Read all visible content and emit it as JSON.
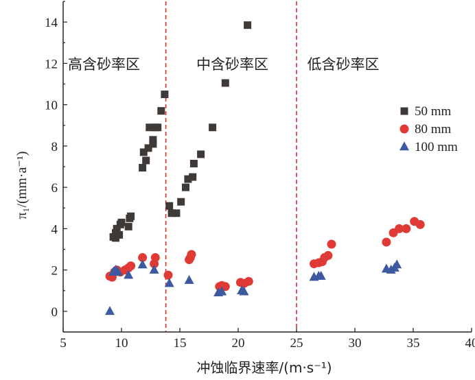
{
  "chart_data": {
    "type": "scatter",
    "xlabel": "冲蚀临界速率/(m·s⁻¹)",
    "ylabel": "π₁/(mm·a⁻¹)",
    "xlim": [
      5,
      40
    ],
    "ylim": [
      -1,
      15
    ],
    "xticks": [
      5,
      10,
      15,
      20,
      25,
      30,
      35,
      40
    ],
    "yticks": [
      0,
      2,
      4,
      6,
      8,
      10,
      12,
      14
    ],
    "grid": false,
    "legend_position": "right",
    "vlines": [
      13.8,
      25
    ],
    "regions": [
      {
        "label": "高含砂率区",
        "x": 8.5
      },
      {
        "label": "中含砂率区",
        "x": 19.5
      },
      {
        "label": "低含砂率区",
        "x": 29.0
      }
    ],
    "series": [
      {
        "name": "50 mm",
        "marker": "square",
        "color": "#3f3a37",
        "points": [
          [
            9.3,
            3.6
          ],
          [
            9.5,
            3.55
          ],
          [
            9.5,
            3.8
          ],
          [
            9.6,
            4.0
          ],
          [
            9.8,
            3.7
          ],
          [
            9.9,
            4.2
          ],
          [
            10.0,
            4.3
          ],
          [
            10.6,
            4.1
          ],
          [
            10.7,
            4.5
          ],
          [
            10.8,
            4.6
          ],
          [
            11.8,
            6.95
          ],
          [
            11.9,
            7.7
          ],
          [
            12.1,
            7.3
          ],
          [
            12.3,
            7.9
          ],
          [
            12.4,
            8.9
          ],
          [
            12.7,
            8.1
          ],
          [
            12.7,
            8.3
          ],
          [
            12.9,
            8.9
          ],
          [
            13.1,
            8.9
          ],
          [
            13.4,
            9.7
          ],
          [
            13.7,
            10.5
          ],
          [
            14.1,
            5.1
          ],
          [
            14.3,
            4.75
          ],
          [
            14.7,
            4.75
          ],
          [
            15.1,
            5.3
          ],
          [
            15.5,
            6.0
          ],
          [
            15.7,
            6.4
          ],
          [
            16.1,
            6.5
          ],
          [
            16.2,
            7.15
          ],
          [
            16.8,
            7.6
          ],
          [
            17.8,
            8.9
          ],
          [
            18.9,
            11.05
          ],
          [
            20.8,
            13.85
          ]
        ]
      },
      {
        "name": "80 mm",
        "marker": "circle",
        "color": "#e03a36",
        "points": [
          [
            9.0,
            1.7
          ],
          [
            9.2,
            1.65
          ],
          [
            9.4,
            1.9
          ],
          [
            9.6,
            2.0
          ],
          [
            9.9,
            1.9
          ],
          [
            10.3,
            2.0
          ],
          [
            10.6,
            2.1
          ],
          [
            10.8,
            2.2
          ],
          [
            11.8,
            2.6
          ],
          [
            12.8,
            2.3
          ],
          [
            12.9,
            2.6
          ],
          [
            14.0,
            1.75
          ],
          [
            15.8,
            2.5
          ],
          [
            15.9,
            2.6
          ],
          [
            16.0,
            2.75
          ],
          [
            18.4,
            1.2
          ],
          [
            18.6,
            1.25
          ],
          [
            18.9,
            1.2
          ],
          [
            20.2,
            1.4
          ],
          [
            20.5,
            1.35
          ],
          [
            20.9,
            1.45
          ],
          [
            26.5,
            2.3
          ],
          [
            26.9,
            2.35
          ],
          [
            27.2,
            2.4
          ],
          [
            27.4,
            2.6
          ],
          [
            27.7,
            2.7
          ],
          [
            28.0,
            3.25
          ],
          [
            32.7,
            3.35
          ],
          [
            33.3,
            3.8
          ],
          [
            33.8,
            4.0
          ],
          [
            34.4,
            4.0
          ],
          [
            35.1,
            4.35
          ],
          [
            35.6,
            4.2
          ]
        ]
      },
      {
        "name": "100 mm",
        "marker": "triangle",
        "color": "#3d5aa1",
        "points": [
          [
            9.0,
            0.0
          ],
          [
            9.3,
            1.9
          ],
          [
            9.5,
            2.0
          ],
          [
            9.7,
            1.9
          ],
          [
            10.6,
            1.75
          ],
          [
            11.8,
            2.25
          ],
          [
            12.8,
            2.0
          ],
          [
            14.1,
            1.35
          ],
          [
            15.8,
            1.5
          ],
          [
            18.3,
            0.9
          ],
          [
            18.6,
            0.95
          ],
          [
            20.3,
            1.0
          ],
          [
            20.5,
            0.95
          ],
          [
            26.5,
            1.65
          ],
          [
            26.9,
            1.7
          ],
          [
            27.1,
            1.7
          ],
          [
            32.7,
            2.05
          ],
          [
            33.1,
            2.0
          ],
          [
            33.4,
            2.1
          ],
          [
            33.6,
            2.25
          ]
        ]
      }
    ]
  }
}
